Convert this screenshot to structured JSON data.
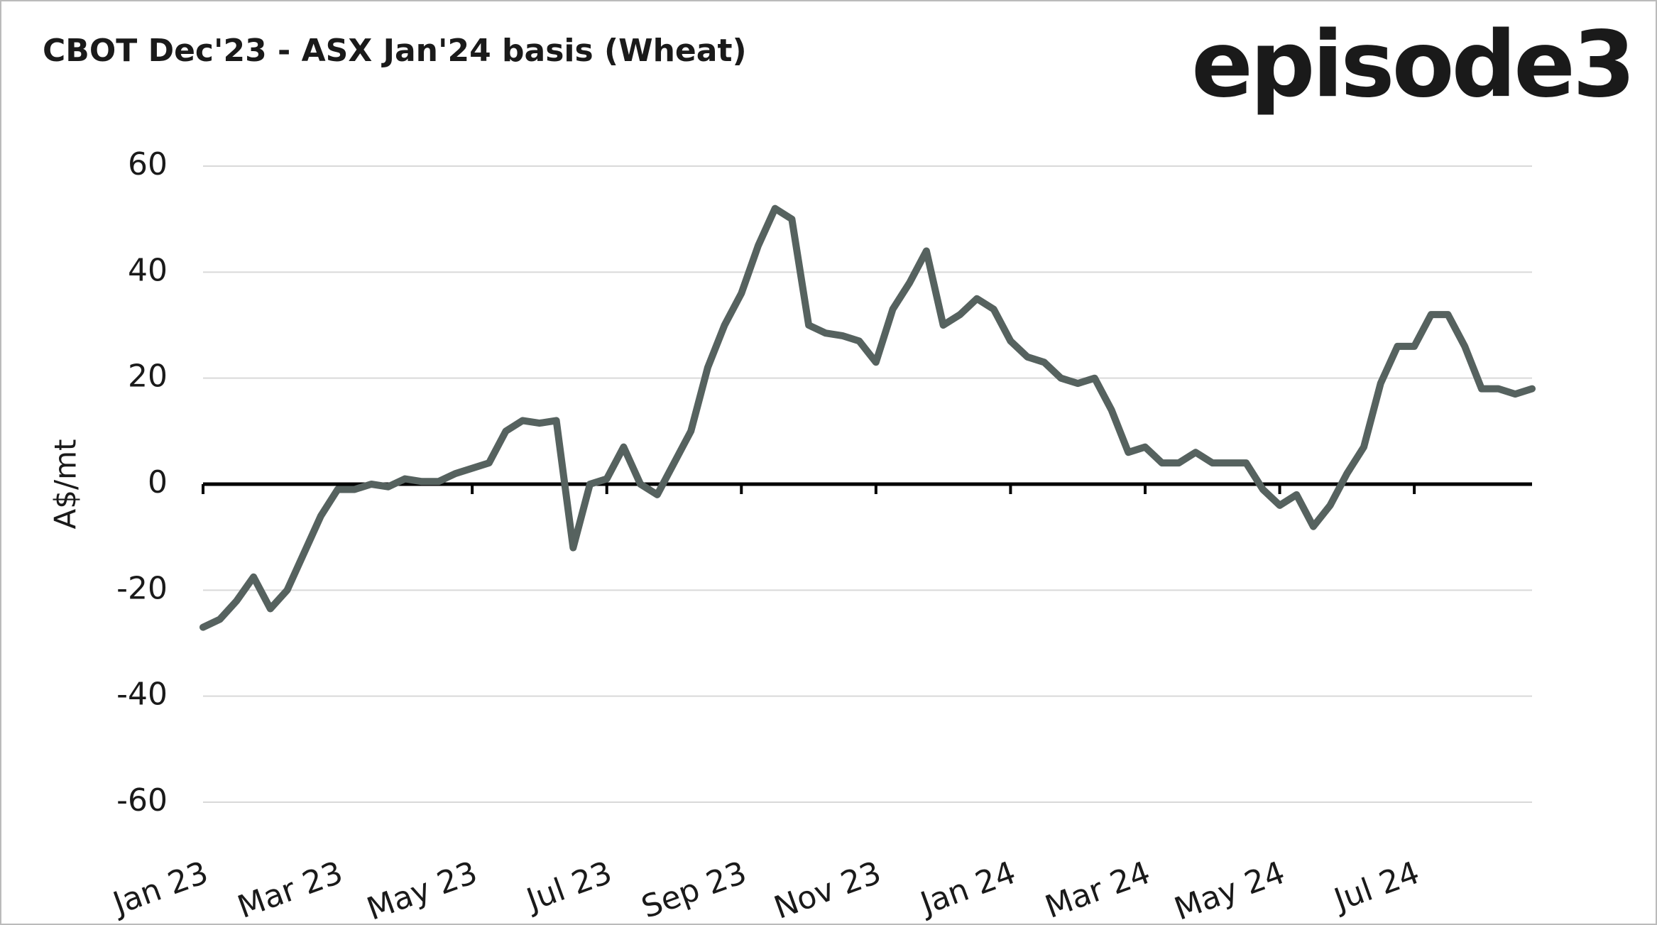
{
  "logo": "episode3",
  "chart_data": {
    "type": "line",
    "title": "CBOT Dec'23 - ASX Jan'24 basis (Wheat)",
    "y_label": "A$/mt",
    "categories": [
      "Jan 23",
      null,
      null,
      null,
      null,
      null,
      null,
      null,
      "Mar 23",
      null,
      null,
      null,
      null,
      null,
      null,
      null,
      "May 23",
      null,
      null,
      null,
      null,
      null,
      null,
      null,
      "Jul 23",
      null,
      null,
      null,
      null,
      null,
      null,
      null,
      "Sep 23",
      null,
      null,
      null,
      null,
      null,
      null,
      null,
      "Nov 23",
      null,
      null,
      null,
      null,
      null,
      null,
      null,
      "Jan 24",
      null,
      null,
      null,
      null,
      null,
      null,
      null,
      "Mar 24",
      null,
      null,
      null,
      null,
      null,
      null,
      null,
      "May 24",
      null,
      null,
      null,
      null,
      null,
      null,
      null,
      "Jul 24",
      null,
      null,
      null,
      null,
      null,
      null,
      null
    ],
    "series": [
      {
        "name": "Basis",
        "color": "#56625f",
        "values": [
          -27,
          -25.5,
          -22,
          -17.5,
          -23.5,
          -20,
          -13,
          -6,
          -1,
          -1,
          0,
          -0.5,
          1,
          0.5,
          0.5,
          2,
          3,
          4,
          10,
          12,
          11.5,
          12,
          -12,
          0,
          1,
          7,
          0,
          -2,
          4,
          10,
          22,
          30,
          36,
          45,
          52,
          50,
          30,
          28.5,
          28,
          27,
          23,
          33,
          38,
          44,
          30,
          32,
          35,
          33,
          27,
          24,
          23,
          20,
          19,
          20,
          14,
          6,
          7,
          4,
          4,
          6,
          4,
          4,
          4,
          -1,
          -4,
          -2,
          -8,
          -4,
          2,
          7,
          19,
          26,
          26,
          32,
          32,
          26,
          18,
          18,
          17,
          18
        ]
      }
    ],
    "ylim": [
      -60,
      60
    ],
    "yticks": [
      -60,
      -40,
      -20,
      0,
      20,
      40,
      60
    ],
    "grid": true
  }
}
